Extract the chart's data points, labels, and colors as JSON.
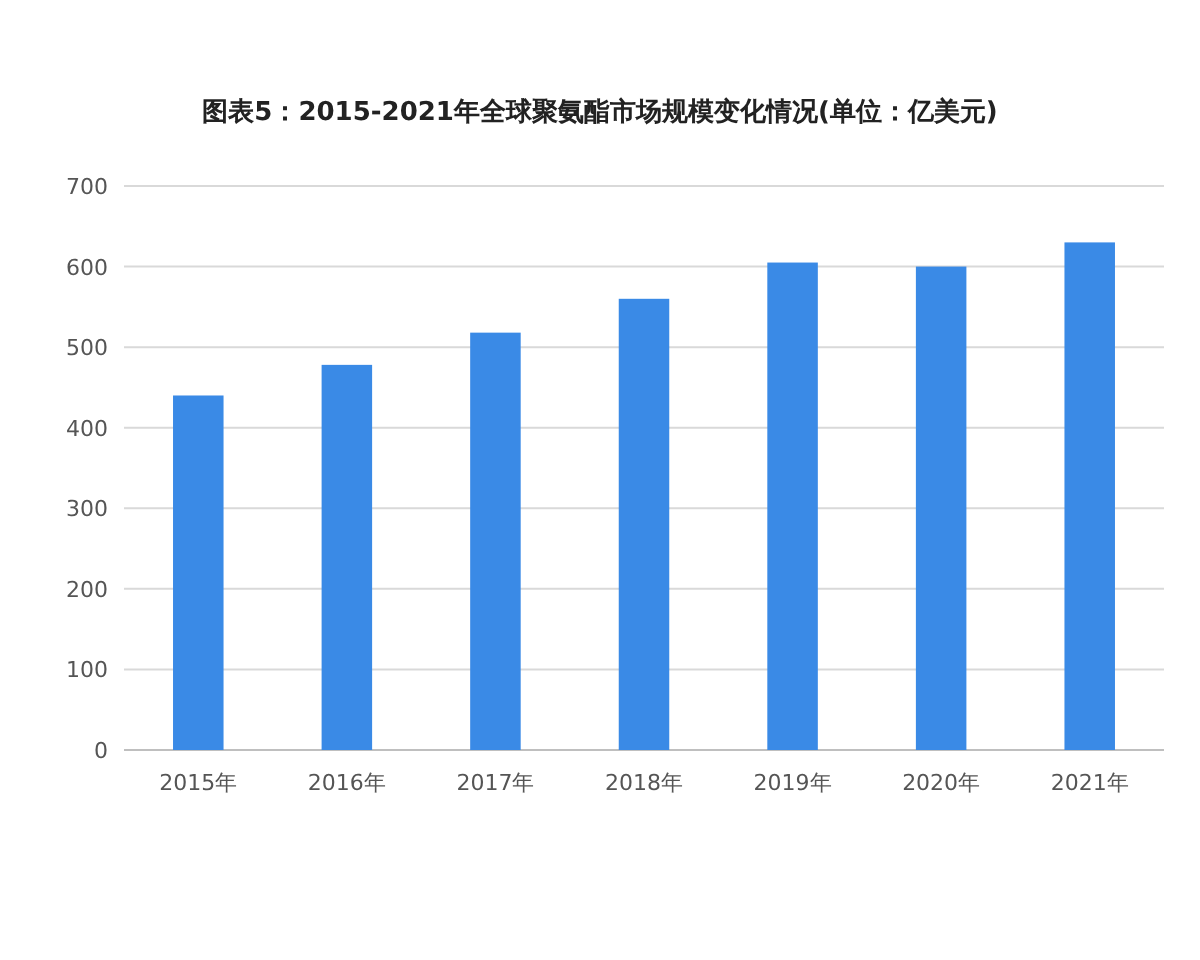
{
  "chart_data": {
    "type": "bar",
    "title": "图表5：2015-2021年全球聚氨酯市场规模变化情况(单位：亿美元)",
    "categories": [
      "2015年",
      "2016年",
      "2017年",
      "2018年",
      "2019年",
      "2020年",
      "2021年"
    ],
    "values": [
      440,
      478,
      518,
      560,
      605,
      600,
      630
    ],
    "color": "#3a8ae6",
    "ylim": [
      0,
      700
    ],
    "yticks": [
      0,
      100,
      200,
      300,
      400,
      500,
      600,
      700
    ],
    "grid": "y"
  }
}
